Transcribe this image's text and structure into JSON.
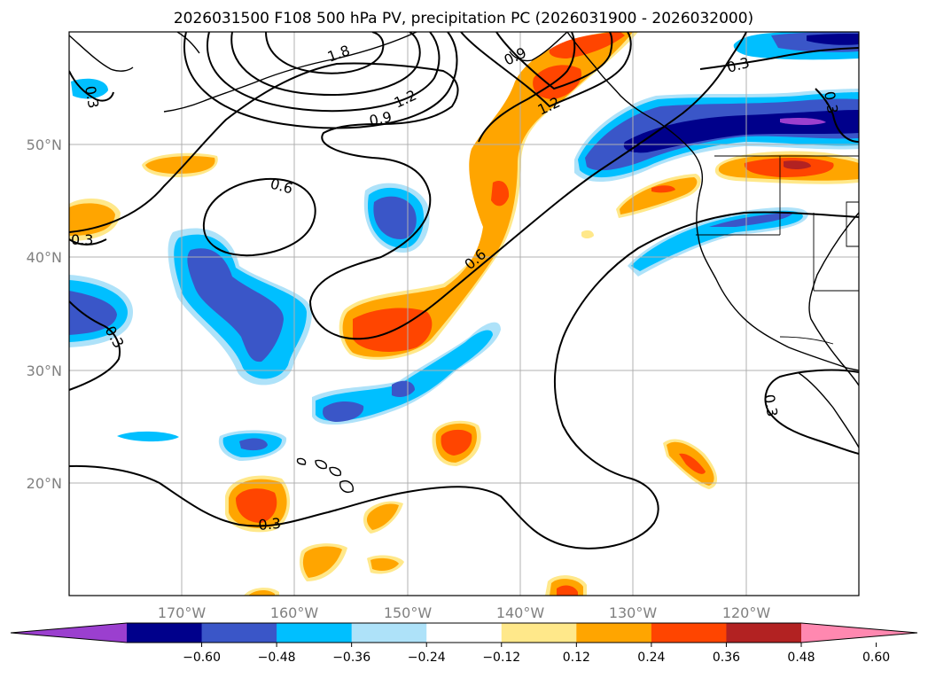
{
  "title": "2026031500 F108 500 hPa PV, precipitation PC (2026031900 - 2026032000)",
  "lon_labels": [
    "170°W",
    "160°W",
    "150°W",
    "140°W",
    "130°W",
    "120°W"
  ],
  "lat_labels": [
    "50°N",
    "40°N",
    "30°N",
    "20°N"
  ],
  "colorbar": {
    "ticks": [
      "−0.60",
      "−0.48",
      "−0.36",
      "−0.24",
      "−0.12",
      "0.12",
      "0.24",
      "0.36",
      "0.48",
      "0.60"
    ],
    "colors": [
      "#9b3fcf",
      "#00008b",
      "#3a56c8",
      "#00bfff",
      "#aee2f9",
      "#ffffff",
      "#ffe88a",
      "#ffa500",
      "#ff4500",
      "#b22222",
      "#ff88b0"
    ]
  },
  "contour_labels": [
    "1.8",
    "1.2",
    "0.9",
    "0.9",
    "1.2",
    "0.6",
    "0.6",
    "0.3",
    "0.3",
    "0.3",
    "0.3",
    "0.3",
    "0.3",
    "0.3"
  ],
  "fill_colors": {
    "neg_light": "#aee2f9",
    "neg_1": "#00bfff",
    "neg_2": "#3a56c8",
    "neg_3": "#00008b",
    "neg_4": "#9b3fcf",
    "pos_light": "#ffe88a",
    "pos_1": "#ffa500",
    "pos_2": "#ff4500",
    "pos_3": "#b22222"
  }
}
